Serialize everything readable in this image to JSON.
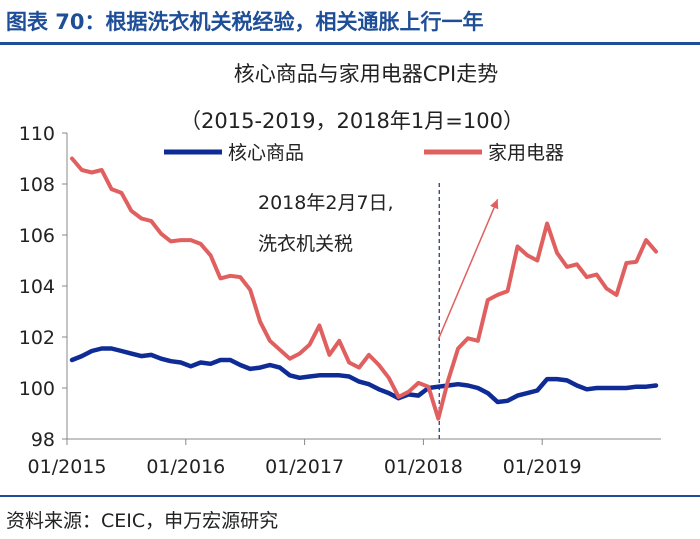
{
  "figure": {
    "title": "图表 70：根据洗衣机关税经验，相关通胀上行一年",
    "source": "资料来源：CEIC，申万宏源研究"
  },
  "chart_data": {
    "type": "line",
    "title": "核心商品与家用电器CPI走势",
    "subtitle": "（2015-2019，2018年1月=100）",
    "xlabel": "",
    "ylabel": "",
    "ylim": [
      98,
      110
    ],
    "yticks": [
      98,
      100,
      102,
      104,
      106,
      108,
      110
    ],
    "xticks": [
      "01/2015",
      "01/2016",
      "01/2017",
      "01/2018",
      "01/2019"
    ],
    "x_start": "01/2015",
    "x_end": "12/2019",
    "legend_position": "top",
    "grid": false,
    "annotation": {
      "date": "02/2018",
      "line1": "2018年2月7日,",
      "line2": "洗衣机关税"
    },
    "trend_arrow": {
      "from": [
        "02/2018",
        101.9
      ],
      "to": [
        "08/2018",
        107.4
      ]
    },
    "series": [
      {
        "name": "核心商品",
        "color": "#0f2c96",
        "values": [
          101.1,
          101.25,
          101.45,
          101.55,
          101.55,
          101.45,
          101.35,
          101.25,
          101.3,
          101.15,
          101.05,
          101.0,
          100.85,
          101.0,
          100.95,
          101.1,
          101.1,
          100.9,
          100.75,
          100.8,
          100.9,
          100.8,
          100.5,
          100.4,
          100.45,
          100.5,
          100.5,
          100.5,
          100.45,
          100.25,
          100.15,
          99.95,
          99.8,
          99.6,
          99.75,
          99.7,
          100.0,
          100.05,
          100.1,
          100.15,
          100.1,
          100.0,
          99.8,
          99.45,
          99.5,
          99.7,
          99.8,
          99.9,
          100.35,
          100.35,
          100.3,
          100.1,
          99.95,
          100.0,
          100.0,
          100.0,
          100.0,
          100.05,
          100.05,
          100.1
        ]
      },
      {
        "name": "家用电器",
        "color": "#e06060",
        "values": [
          109.0,
          108.55,
          108.45,
          108.55,
          107.8,
          107.65,
          106.95,
          106.65,
          106.55,
          106.05,
          105.75,
          105.8,
          105.8,
          105.65,
          105.2,
          104.3,
          104.4,
          104.35,
          103.85,
          102.6,
          101.85,
          101.5,
          101.15,
          101.35,
          101.7,
          102.45,
          101.3,
          101.85,
          101.0,
          100.8,
          101.3,
          100.9,
          100.4,
          99.65,
          99.85,
          100.2,
          100.05,
          98.8,
          100.3,
          101.55,
          101.95,
          101.85,
          103.45,
          103.65,
          103.8,
          105.55,
          105.2,
          105.0,
          106.45,
          105.3,
          104.75,
          104.85,
          104.35,
          104.45,
          103.9,
          103.65,
          104.9,
          104.95,
          105.8,
          105.35
        ]
      }
    ]
  }
}
